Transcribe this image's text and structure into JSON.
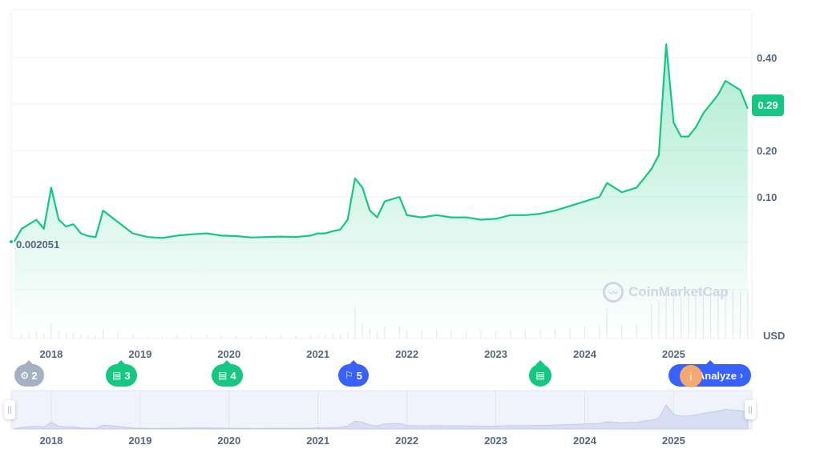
{
  "chart_data": {
    "type": "line",
    "x": [
      "2017-08",
      "2017-09",
      "2017-10",
      "2017-11",
      "2017-12",
      "2018-01",
      "2018-02",
      "2018-03",
      "2018-04",
      "2018-05",
      "2018-06",
      "2018-07",
      "2018-08",
      "2018-10",
      "2018-12",
      "2019-02",
      "2019-04",
      "2019-06",
      "2019-08",
      "2019-10",
      "2019-12",
      "2020-02",
      "2020-04",
      "2020-06",
      "2020-08",
      "2020-10",
      "2020-12",
      "2021-01",
      "2021-02",
      "2021-03",
      "2021-04",
      "2021-05",
      "2021-06",
      "2021-07",
      "2021-08",
      "2021-09",
      "2021-10",
      "2021-12",
      "2022-01",
      "2022-03",
      "2022-05",
      "2022-07",
      "2022-09",
      "2022-11",
      "2023-01",
      "2023-03",
      "2023-05",
      "2023-07",
      "2023-09",
      "2023-11",
      "2024-01",
      "2024-03",
      "2024-04",
      "2024-06",
      "2024-08",
      "2024-10",
      "2024-11",
      "2024-12",
      "2025-01",
      "2025-02",
      "2025-03",
      "2025-04",
      "2025-05",
      "2025-06",
      "2025-07",
      "2025-08",
      "2025-09",
      "2025-10",
      "2025-11"
    ],
    "values": [
      0.0021,
      0.03,
      0.04,
      0.05,
      0.03,
      0.12,
      0.05,
      0.035,
      0.04,
      0.02,
      0.014,
      0.012,
      0.07,
      0.045,
      0.02,
      0.012,
      0.01,
      0.015,
      0.018,
      0.02,
      0.015,
      0.014,
      0.011,
      0.012,
      0.013,
      0.012,
      0.015,
      0.02,
      0.02,
      0.025,
      0.028,
      0.05,
      0.14,
      0.12,
      0.07,
      0.055,
      0.09,
      0.1,
      0.06,
      0.055,
      0.06,
      0.055,
      0.055,
      0.05,
      0.052,
      0.06,
      0.06,
      0.063,
      0.07,
      0.08,
      0.09,
      0.1,
      0.13,
      0.11,
      0.12,
      0.16,
      0.19,
      0.43,
      0.26,
      0.23,
      0.23,
      0.25,
      0.28,
      0.3,
      0.32,
      0.35,
      0.34,
      0.33,
      0.29
    ],
    "x_ticks": [
      "2018",
      "2019",
      "2020",
      "2021",
      "2022",
      "2023",
      "2024",
      "2025"
    ],
    "y_ticks": [
      "0.40",
      "0.30",
      "0.20",
      "0.10"
    ],
    "y_scale": "nonlinear",
    "start_label": "0.002051",
    "current_price": "0.29",
    "currency": "USD",
    "line_color": "#16c784",
    "grid": true
  },
  "watermark": "CoinMarketCap",
  "markers": [
    {
      "icon": "clock-icon",
      "count": "2",
      "color": "grey"
    },
    {
      "icon": "document-icon",
      "count": "3",
      "color": "green"
    },
    {
      "icon": "document-icon",
      "count": "4",
      "color": "green"
    },
    {
      "icon": "flag-icon",
      "count": "5",
      "color": "blue"
    },
    {
      "icon": "document-icon",
      "count": "",
      "color": "green"
    }
  ],
  "analyze_label": "Analyze",
  "info_icon_label": "i"
}
